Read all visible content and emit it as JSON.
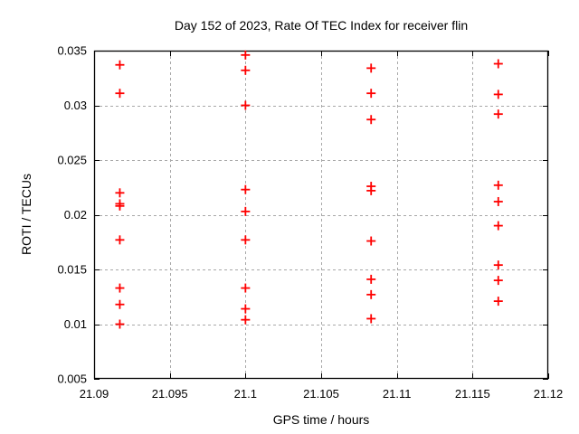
{
  "window": {
    "background": "#ffffff"
  },
  "chart_data": {
    "type": "scatter",
    "title": "Day 152 of 2023, Rate Of TEC Index for receiver flin",
    "xlabel": "GPS time / hours",
    "ylabel": "ROTI / TECUs",
    "xlim": [
      21.09,
      21.12
    ],
    "ylim": [
      0.005,
      0.035
    ],
    "x_ticks": {
      "values": [
        21.09,
        21.095,
        21.1,
        21.105,
        21.11,
        21.115,
        21.12
      ],
      "labels": [
        "21.09",
        "21.095",
        "21.1",
        "21.105",
        "21.11",
        "21.115",
        "21.12"
      ]
    },
    "y_ticks": {
      "values": [
        0.005,
        0.01,
        0.015,
        0.02,
        0.025,
        0.03,
        0.035
      ],
      "labels": [
        "0.005",
        "0.01",
        "0.015",
        "0.02",
        "0.025",
        "0.03",
        "0.035"
      ]
    },
    "grid": true,
    "legend": "none",
    "marker": {
      "shape": "plus",
      "color": "#ff0000",
      "size": 10,
      "stroke_width": 1.8
    },
    "grid_color": "#a8a8a8",
    "border_color": "#000000",
    "series": [
      {
        "name": "ROTI",
        "points": [
          [
            21.0917,
            0.0337
          ],
          [
            21.0917,
            0.0311
          ],
          [
            21.0917,
            0.022
          ],
          [
            21.0917,
            0.021
          ],
          [
            21.0917,
            0.0208
          ],
          [
            21.0917,
            0.0177
          ],
          [
            21.0917,
            0.0133
          ],
          [
            21.0917,
            0.0118
          ],
          [
            21.0917,
            0.01
          ],
          [
            21.1,
            0.0346
          ],
          [
            21.1,
            0.0332
          ],
          [
            21.1,
            0.03
          ],
          [
            21.1,
            0.0223
          ],
          [
            21.1,
            0.0203
          ],
          [
            21.1,
            0.0177
          ],
          [
            21.1,
            0.0133
          ],
          [
            21.1,
            0.0114
          ],
          [
            21.1,
            0.0104
          ],
          [
            21.1083,
            0.0334
          ],
          [
            21.1083,
            0.0311
          ],
          [
            21.1083,
            0.0287
          ],
          [
            21.1083,
            0.0226
          ],
          [
            21.1083,
            0.0222
          ],
          [
            21.1083,
            0.0176
          ],
          [
            21.1083,
            0.0141
          ],
          [
            21.1083,
            0.0127
          ],
          [
            21.1083,
            0.0105
          ],
          [
            21.1167,
            0.0338
          ],
          [
            21.1167,
            0.031
          ],
          [
            21.1167,
            0.0292
          ],
          [
            21.1167,
            0.0227
          ],
          [
            21.1167,
            0.0212
          ],
          [
            21.1167,
            0.019
          ],
          [
            21.1167,
            0.0154
          ],
          [
            21.1167,
            0.014
          ],
          [
            21.1167,
            0.0121
          ]
        ]
      }
    ]
  }
}
